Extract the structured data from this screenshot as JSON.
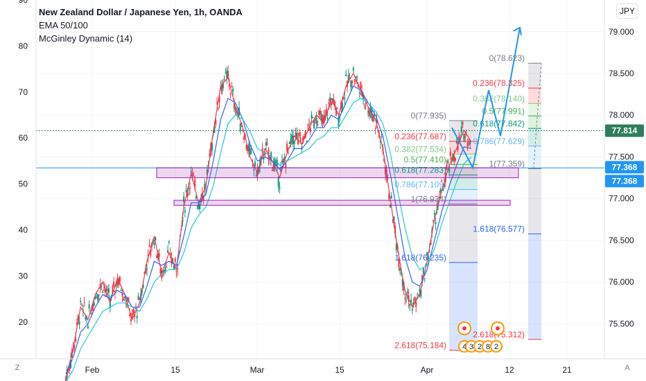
{
  "legend": {
    "title": "New Zealand Dollar / Japanese Yen, 1h, OANDA",
    "indicators": [
      "EMA 50/100",
      "McGinley Dynamic (14)"
    ]
  },
  "toolbar": {
    "currency_label": "JPY",
    "left_scale_button": "Z",
    "auto_button": "A"
  },
  "price_badges": [
    {
      "value": "77.814",
      "color": "#2e7d5b"
    },
    {
      "value": "77.368",
      "color": "#2196f3"
    },
    {
      "value": "77.368",
      "color": "#2196f3"
    }
  ],
  "chart_data": {
    "type": "line",
    "x_ticks": [
      "Feb",
      "15",
      "Mar",
      "15",
      "Apr",
      "12",
      "21"
    ],
    "right_axis": {
      "ylim": [
        75.08,
        79.38
      ],
      "ticks": [
        "79.000",
        "78.500",
        "78.000",
        "77.500",
        "77.000",
        "76.500",
        "76.000",
        "75.500"
      ]
    },
    "left_axis": {
      "ylim": [
        12,
        90
      ],
      "ticks": [
        "90",
        "80",
        "70",
        "60",
        "50",
        "40",
        "30",
        "20"
      ]
    },
    "series": [
      {
        "values": [
          74.85,
          75.2,
          75.7,
          75.55,
          75.85,
          76.0,
          75.75,
          76.05,
          75.85,
          75.55,
          75.75,
          76.25,
          76.55,
          76.1,
          76.35,
          76.15,
          76.9,
          77.3,
          76.95,
          77.15,
          77.8,
          78.35,
          78.45,
          78.1,
          77.85,
          77.5,
          77.3,
          77.6,
          77.45,
          77.25,
          77.55,
          77.75,
          77.65,
          77.85,
          78.0,
          77.9,
          78.2,
          78.0,
          78.35,
          78.5,
          78.3,
          78.1,
          77.95,
          77.6,
          77.0,
          76.4,
          75.9,
          75.7,
          75.85,
          76.25,
          76.75,
          77.1,
          77.4,
          77.6,
          77.82,
          77.68
        ]
      },
      {
        "values": [
          74.9,
          75.1,
          75.4,
          75.5,
          75.7,
          75.85,
          75.8,
          75.9,
          75.85,
          75.7,
          75.7,
          75.95,
          76.25,
          76.2,
          76.25,
          76.2,
          76.55,
          76.95,
          76.95,
          77.05,
          77.45,
          77.95,
          78.2,
          78.15,
          77.95,
          77.65,
          77.45,
          77.5,
          77.45,
          77.35,
          77.45,
          77.6,
          77.6,
          77.7,
          77.85,
          77.85,
          78.0,
          77.95,
          78.15,
          78.35,
          78.3,
          78.15,
          78.0,
          77.75,
          77.3,
          76.8,
          76.3,
          76.0,
          75.95,
          76.15,
          76.5,
          76.85,
          77.15,
          77.4,
          77.62,
          77.6
        ]
      },
      {
        "values": [
          74.8,
          74.95,
          75.2,
          75.35,
          75.5,
          75.65,
          75.7,
          75.75,
          75.75,
          75.7,
          75.65,
          75.8,
          76.0,
          76.1,
          76.15,
          76.15,
          76.35,
          76.65,
          76.8,
          76.9,
          77.15,
          77.55,
          77.9,
          78.0,
          77.95,
          77.8,
          77.6,
          77.55,
          77.5,
          77.4,
          77.45,
          77.5,
          77.55,
          77.6,
          77.7,
          77.75,
          77.85,
          77.85,
          78.0,
          78.15,
          78.2,
          78.15,
          78.05,
          77.9,
          77.55,
          77.1,
          76.65,
          76.3,
          76.15,
          76.2,
          76.4,
          76.7,
          76.95,
          77.2,
          77.42,
          77.5
        ]
      }
    ],
    "horizontal_lines": [
      {
        "value": 77.814,
        "color": "#2e7d5b"
      },
      {
        "value": 77.368,
        "color": "#2196f3"
      }
    ],
    "zones": [
      {
        "label": "",
        "from": 77.37,
        "to": 77.25
      },
      {
        "label": "",
        "from": 76.98,
        "to": 76.92
      }
    ],
    "fib_left": [
      {
        "label": "0(77.935)",
        "value": 77.935,
        "color": "#787b86"
      },
      {
        "label": "0.236(77.687)",
        "value": 77.687,
        "color": "#f23645"
      },
      {
        "label": "0.382(77.534)",
        "value": 77.534,
        "color": "#81c784"
      },
      {
        "label": "0.5(77.410)",
        "value": 77.41,
        "color": "#4caf50"
      },
      {
        "label": "0.618(77.283)",
        "value": 77.283,
        "color": "#089981"
      },
      {
        "label": "0.786(77.109)",
        "value": 77.109,
        "color": "#64b5f6"
      },
      {
        "label": "1(76.934)",
        "value": 76.934,
        "color": "#787b86"
      },
      {
        "label": "1.618(76.235)",
        "value": 76.235,
        "color": "#2962ff"
      },
      {
        "label": "2.618(75.184)",
        "value": 75.184,
        "color": "#f23645"
      }
    ],
    "fib_right": [
      {
        "label": "0(78.623)",
        "value": 78.623,
        "color": "#787b86"
      },
      {
        "label": "0.236(78.325)",
        "value": 78.325,
        "color": "#f23645"
      },
      {
        "label": "0.382(78.140)",
        "value": 78.14,
        "color": "#81c784"
      },
      {
        "label": "0.5(77.991)",
        "value": 77.991,
        "color": "#4caf50"
      },
      {
        "label": "0.618(77.842)",
        "value": 77.842,
        "color": "#089981"
      },
      {
        "label": "0.786(77.629)",
        "value": 77.629,
        "color": "#64b5f6"
      },
      {
        "label": "1(77.359)",
        "value": 77.359,
        "color": "#787b86"
      },
      {
        "label": "1.618(76.577)",
        "value": 76.577,
        "color": "#2962ff"
      },
      {
        "label": "2.618(75.312)",
        "value": 75.312,
        "color": "#f23645"
      }
    ],
    "projection_path": [
      [
        77.85,
        0
      ],
      [
        77.37,
        1
      ],
      [
        78.3,
        2
      ],
      [
        77.75,
        3
      ],
      [
        79.05,
        4
      ]
    ],
    "event_markers": [
      "4",
      "3",
      "2",
      "8",
      "2"
    ]
  }
}
